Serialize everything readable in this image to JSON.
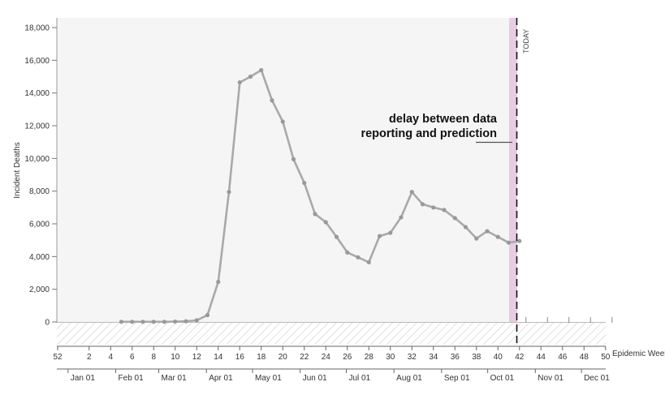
{
  "chart_data": {
    "type": "line",
    "title": "",
    "ylabel": "Incident Deaths",
    "xlabel": "Epidemic Week",
    "ylim": [
      0,
      18000
    ],
    "y_ticks": [
      {
        "value": 0,
        "label": "0"
      },
      {
        "value": 2000,
        "label": "2,000"
      },
      {
        "value": 4000,
        "label": "4,000"
      },
      {
        "value": 6000,
        "label": "6,000"
      },
      {
        "value": 8000,
        "label": "8,000"
      },
      {
        "value": 10000,
        "label": "10,000"
      },
      {
        "value": 12000,
        "label": "12,000"
      },
      {
        "value": 14000,
        "label": "14,000"
      },
      {
        "value": 16000,
        "label": "16,000"
      },
      {
        "value": 18000,
        "label": "18,000"
      }
    ],
    "week_ticks": [
      "52",
      "2",
      "4",
      "6",
      "8",
      "10",
      "12",
      "14",
      "16",
      "18",
      "20",
      "22",
      "24",
      "26",
      "28",
      "30",
      "32",
      "34",
      "36",
      "38",
      "40",
      "42",
      "44",
      "46",
      "48",
      "50"
    ],
    "month_ticks": [
      "Jan 01",
      "Feb 01",
      "Mar 01",
      "Apr 01",
      "May 01",
      "Jun 01",
      "Jul 01",
      "Aug 01",
      "Sep 01",
      "Oct 01",
      "Nov 01",
      "Dec 01"
    ],
    "grid": false,
    "series": [
      {
        "color": "#a9a9a9",
        "x": [
          5,
          6,
          7,
          8,
          9,
          10,
          11,
          12,
          13,
          14,
          15,
          16,
          17,
          18,
          19,
          20,
          21,
          22,
          23,
          24,
          25,
          26,
          27,
          28,
          29,
          30,
          31,
          32,
          33,
          34,
          35,
          36,
          37,
          38,
          39,
          40,
          41,
          42
        ],
        "y": [
          10,
          10,
          10,
          10,
          10,
          20,
          40,
          100,
          420,
          2450,
          7950,
          14650,
          15000,
          15400,
          13550,
          12250,
          9950,
          8500,
          6600,
          6100,
          5200,
          4250,
          3950,
          3650,
          5250,
          5450,
          6400,
          7950,
          7200,
          7000,
          6850,
          6350,
          5800,
          5100,
          5550,
          5200,
          4850,
          4950
        ]
      }
    ],
    "annotation": {
      "text_line1": "delay between data",
      "text_line2": "reporting and prediction"
    },
    "today_label": "TODAY",
    "colors": {
      "plot_background": "#f4f5f4",
      "line": "#a9a9a9",
      "delay_band": "#e8cde0",
      "today_line": "#111111"
    }
  }
}
